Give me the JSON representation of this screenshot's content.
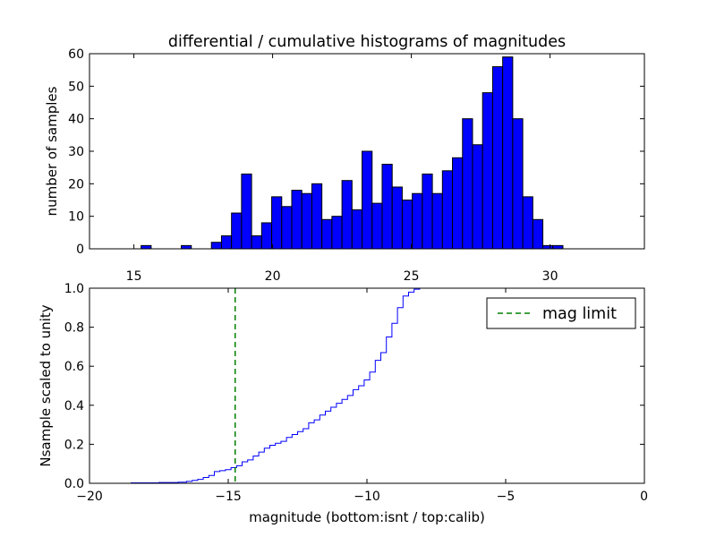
{
  "colors": {
    "bar_fill": "#0000ff",
    "cum_line": "#0000ff",
    "limit_line": "#008000",
    "frame": "#000000"
  },
  "chart_data": [
    {
      "type": "bar",
      "title": "differential / cumulative histograms of magnitudes",
      "ylabel": "number of samples",
      "xlabel": "",
      "xlim": [
        13.4,
        33.4
      ],
      "ylim": [
        0,
        60
      ],
      "xticks": [
        15,
        20,
        25,
        30
      ],
      "xtick_position": "bottom",
      "yticks": [
        0,
        10,
        20,
        30,
        40,
        50,
        60
      ],
      "bin_width": 0.362,
      "bin_start": 15.26,
      "values": [
        1,
        0,
        0,
        0,
        1,
        0,
        0,
        2,
        4,
        11,
        23,
        4,
        8,
        16,
        13,
        18,
        17,
        20,
        9,
        10,
        21,
        12,
        30,
        14,
        26,
        19,
        15,
        17,
        23,
        17,
        24,
        28,
        40,
        32,
        48,
        56,
        59,
        40,
        16,
        9,
        1,
        1
      ]
    },
    {
      "type": "line",
      "style": "step",
      "xlabel": "magnitude (bottom:isnt / top:calib)",
      "ylabel": "Nsample scaled to unity",
      "xlim": [
        -20,
        0
      ],
      "ylim": [
        0,
        1.0
      ],
      "xticks": [
        -20,
        -15,
        -10,
        -5,
        0
      ],
      "xtick_labels": [
        "−20",
        "−15",
        "−10",
        "−5",
        "0"
      ],
      "yticks": [
        0.0,
        0.2,
        0.4,
        0.6,
        0.8,
        1.0
      ],
      "ytick_labels": [
        "0.0",
        "0.2",
        "0.4",
        "0.6",
        "0.8",
        "1.0"
      ],
      "x": [
        -19.5,
        -18.5,
        -17.5,
        -16.8,
        -16.5,
        -16.3,
        -16.1,
        -15.9,
        -15.7,
        -15.5,
        -15.3,
        -15.1,
        -14.9,
        -14.7,
        -14.5,
        -14.3,
        -14.1,
        -13.9,
        -13.7,
        -13.5,
        -13.3,
        -13.1,
        -12.9,
        -12.7,
        -12.5,
        -12.3,
        -12.1,
        -11.9,
        -11.7,
        -11.5,
        -11.3,
        -11.1,
        -10.9,
        -10.7,
        -10.5,
        -10.3,
        -10.1,
        -9.9,
        -9.7,
        -9.5,
        -9.3,
        -9.1,
        -8.9,
        -8.7,
        -8.5,
        -8.3,
        -8.1,
        -7.9
      ],
      "y": [
        0.0,
        0.002,
        0.004,
        0.006,
        0.01,
        0.015,
        0.02,
        0.03,
        0.04,
        0.06,
        0.065,
        0.07,
        0.08,
        0.09,
        0.11,
        0.12,
        0.14,
        0.16,
        0.18,
        0.195,
        0.205,
        0.215,
        0.235,
        0.25,
        0.265,
        0.28,
        0.31,
        0.325,
        0.35,
        0.37,
        0.39,
        0.41,
        0.43,
        0.45,
        0.48,
        0.5,
        0.53,
        0.57,
        0.63,
        0.67,
        0.75,
        0.82,
        0.9,
        0.96,
        0.98,
        0.995,
        1.0,
        1.0
      ],
      "mag_limit": -14.75,
      "legend": {
        "label": "mag limit",
        "position": "top-right"
      }
    }
  ]
}
